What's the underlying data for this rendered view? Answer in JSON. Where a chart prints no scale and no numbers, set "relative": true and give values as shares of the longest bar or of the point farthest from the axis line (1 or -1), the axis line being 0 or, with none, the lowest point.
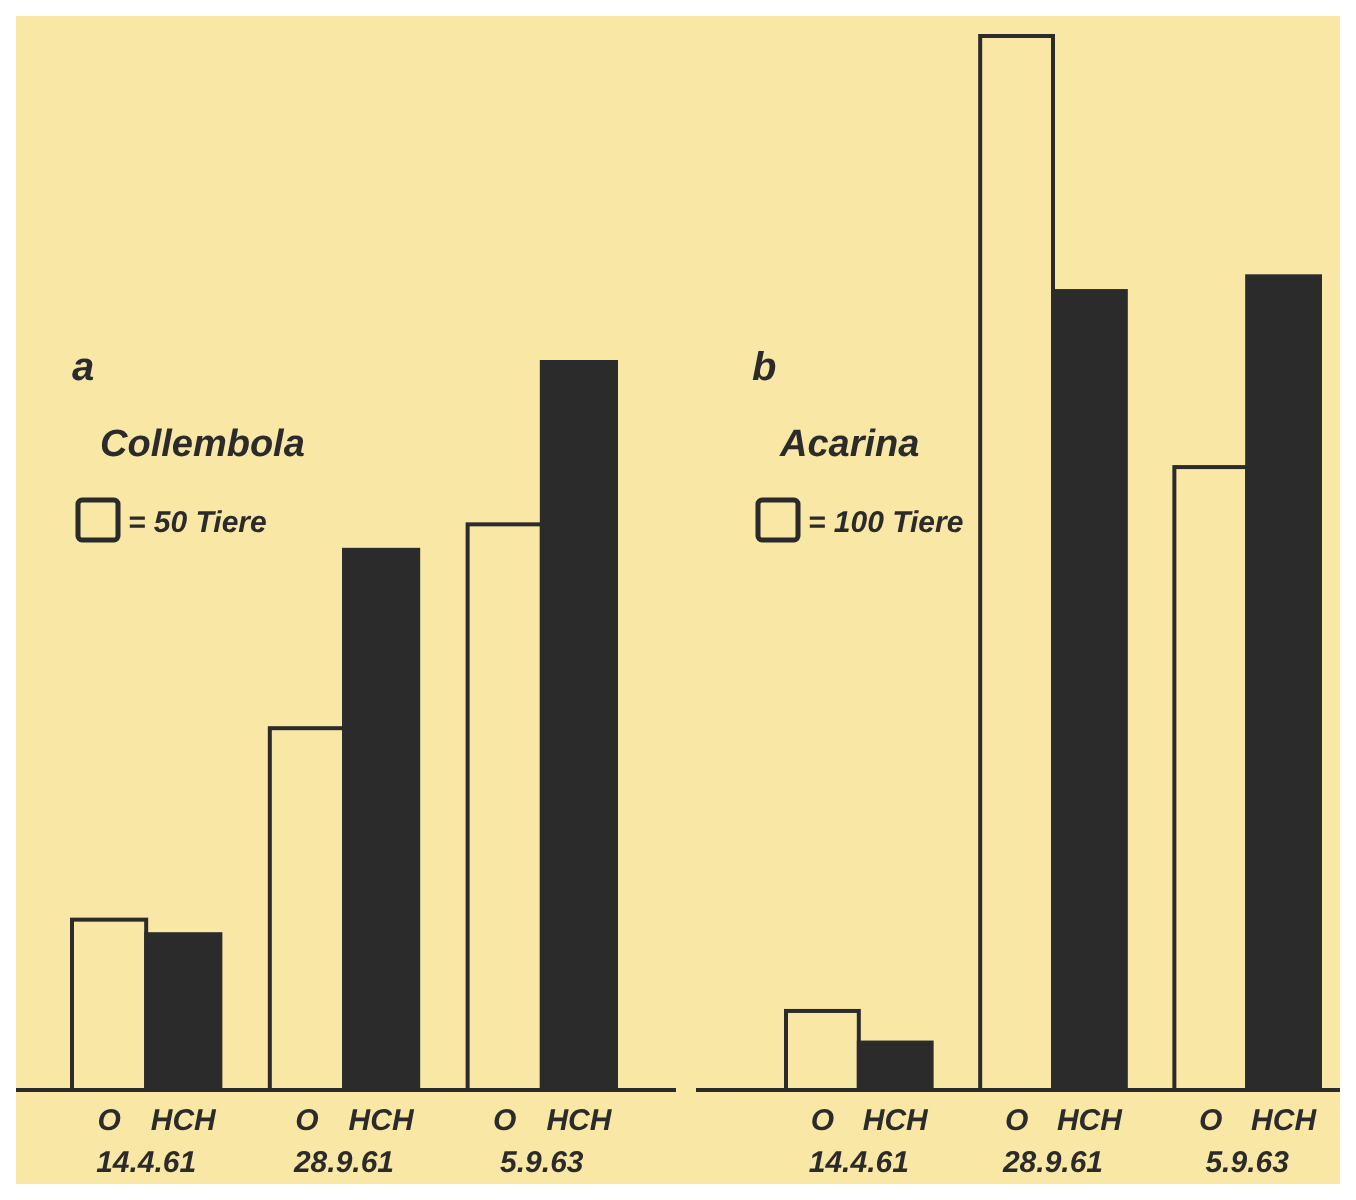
{
  "chart_data": [
    {
      "type": "bar",
      "title": "a",
      "subtitle": "Collembola",
      "annotations": [
        "= 50 Tiere"
      ],
      "relative": true,
      "categories": [
        "14.4.61",
        "28.9.61",
        "5.9.63"
      ],
      "series": [
        {
          "name": "O",
          "color": "#f9e7a6",
          "values": [
            0.234,
            0.497,
            0.777
          ]
        },
        {
          "name": "HCH",
          "color": "#2b2b2b",
          "values": [
            0.214,
            0.742,
            1
          ]
        }
      ]
    },
    {
      "type": "bar",
      "title": "b",
      "subtitle": "Acarina",
      "annotations": [
        "= 100 Tiere"
      ],
      "relative": true,
      "categories": [
        "14.4.61",
        "28.9.61",
        "5.9.63"
      ],
      "series": [
        {
          "name": "O",
          "color": "#f9e7a6",
          "values": [
            0.075,
            1,
            0.591
          ]
        },
        {
          "name": "HCH",
          "color": "#2b2b2b",
          "values": [
            0.045,
            0.758,
            0.772
          ]
        }
      ]
    }
  ]
}
